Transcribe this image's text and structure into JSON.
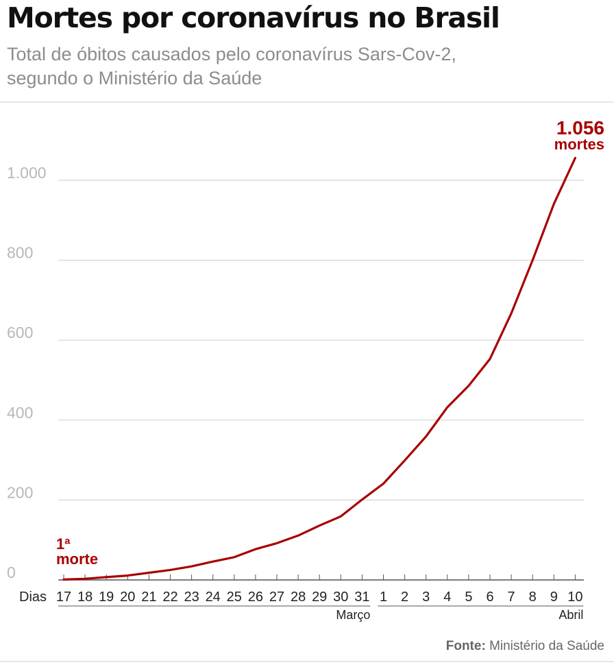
{
  "header": {
    "title": "Mortes por coronavírus no Brasil",
    "subtitle_line1": "Total de óbitos causados pelo coronavírus Sars-Cov-2,",
    "subtitle_line2": "segundo o Ministério da Saúde"
  },
  "footer": {
    "source_label": "Fonte:",
    "source_value": "Ministério da Saúde"
  },
  "colors": {
    "line": "#a80000",
    "grid": "#d4d4d4",
    "ytick": "#b8b8b8",
    "text": "#222222"
  },
  "chart_data": {
    "type": "line",
    "title": "Mortes por coronavírus no Brasil",
    "subtitle": "Total de óbitos causados pelo coronavírus Sars-Cov-2, segundo o Ministério da Saúde",
    "xlabel": "Dias",
    "ylabel": "",
    "ylim": [
      0,
      1056
    ],
    "yticks": [
      0,
      200,
      400,
      600,
      800,
      1000
    ],
    "ytick_labels": [
      "0",
      "200",
      "400",
      "600",
      "800",
      "1.000"
    ],
    "grid": true,
    "categories": [
      "17",
      "18",
      "19",
      "20",
      "21",
      "22",
      "23",
      "24",
      "25",
      "26",
      "27",
      "28",
      "29",
      "30",
      "31",
      "1",
      "2",
      "3",
      "4",
      "5",
      "6",
      "7",
      "8",
      "9",
      "10"
    ],
    "month_groups": [
      {
        "label": "Março",
        "start": 0,
        "end": 14
      },
      {
        "label": "Abril",
        "start": 15,
        "end": 24
      }
    ],
    "series": [
      {
        "values": [
          1,
          3,
          7,
          11,
          18,
          25,
          34,
          46,
          57,
          77,
          92,
          111,
          136,
          159,
          201,
          241,
          299,
          359,
          432,
          486,
          553,
          667,
          800,
          941,
          1056
        ]
      }
    ],
    "annotations": [
      {
        "index": 0,
        "line1": "1ª",
        "line2": "morte"
      },
      {
        "index": 24,
        "line1": "1.056",
        "line2": "mortes"
      }
    ]
  }
}
